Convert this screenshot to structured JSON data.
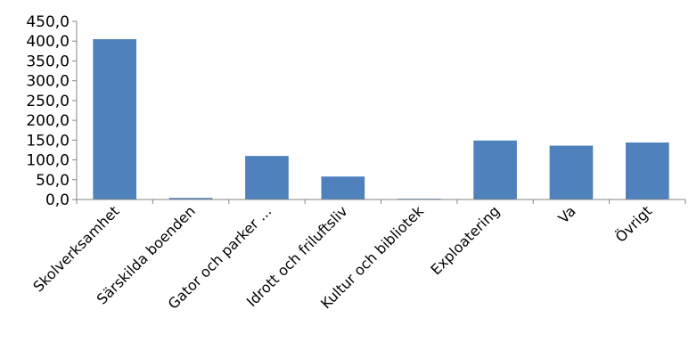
{
  "chart_data": {
    "type": "bar",
    "title": "",
    "xlabel": "",
    "ylabel": "",
    "categories": [
      "Skolverksamhet",
      "Särskilda boenden",
      "Gator och parker ...",
      "Idrott och friluftsliv",
      "Kultur och bibliotek",
      "Exploatering",
      "Va",
      "Övrigt"
    ],
    "values": [
      405,
      4,
      110,
      58,
      2,
      149,
      136,
      144
    ],
    "ylim": [
      0,
      450
    ],
    "yticks": [
      "0,0",
      "50,0",
      "100,0",
      "150,0",
      "200,0",
      "250,0",
      "300,0",
      "350,0",
      "400,0",
      "450,0"
    ],
    "grid": false,
    "legend": "none",
    "colors": {
      "bar": "#4F81BD",
      "axis": "#868686"
    }
  }
}
